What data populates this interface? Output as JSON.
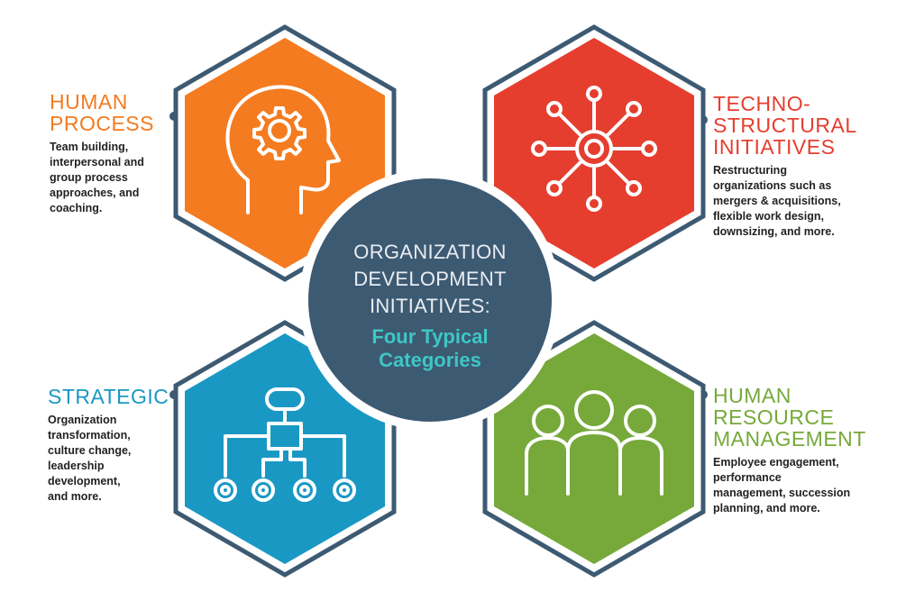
{
  "center": {
    "title_lines": [
      "ORGANIZATION",
      "DEVELOPMENT",
      "INITIATIVES:"
    ],
    "subtitle_lines": [
      "Four Typical",
      "Categories"
    ]
  },
  "categories": [
    {
      "title_lines": [
        "HUMAN",
        "PROCESS"
      ],
      "description_lines": [
        "Team building,",
        "interpersonal and",
        "group process",
        "approaches, and",
        "coaching."
      ],
      "color": "#f47b20",
      "icon": "head-gear-icon"
    },
    {
      "title_lines": [
        "TECHNO-",
        "STRUCTURAL",
        "INITIATIVES"
      ],
      "description_lines": [
        "Restructuring",
        "organizations such as",
        "mergers & acquisitions,",
        "flexible work design,",
        "downsizing, and more."
      ],
      "color": "#e53e2f",
      "icon": "network-hub-icon"
    },
    {
      "title_lines": [
        "STRATEGIC"
      ],
      "description_lines": [
        "Organization",
        "transformation,",
        "culture change,",
        "leadership",
        "development,",
        "and more."
      ],
      "color": "#1a98c4",
      "icon": "org-chart-icon"
    },
    {
      "title_lines": [
        "HUMAN",
        "RESOURCE",
        "MANAGEMENT"
      ],
      "description_lines": [
        "Employee engagement,",
        "performance",
        "management, succession",
        "planning, and more."
      ],
      "color": "#76a93a",
      "icon": "people-group-icon"
    }
  ],
  "colors": {
    "hex_border": "#3d5a73",
    "center_circle": "#3d5a73",
    "center_subtitle": "#3ec7c4"
  }
}
